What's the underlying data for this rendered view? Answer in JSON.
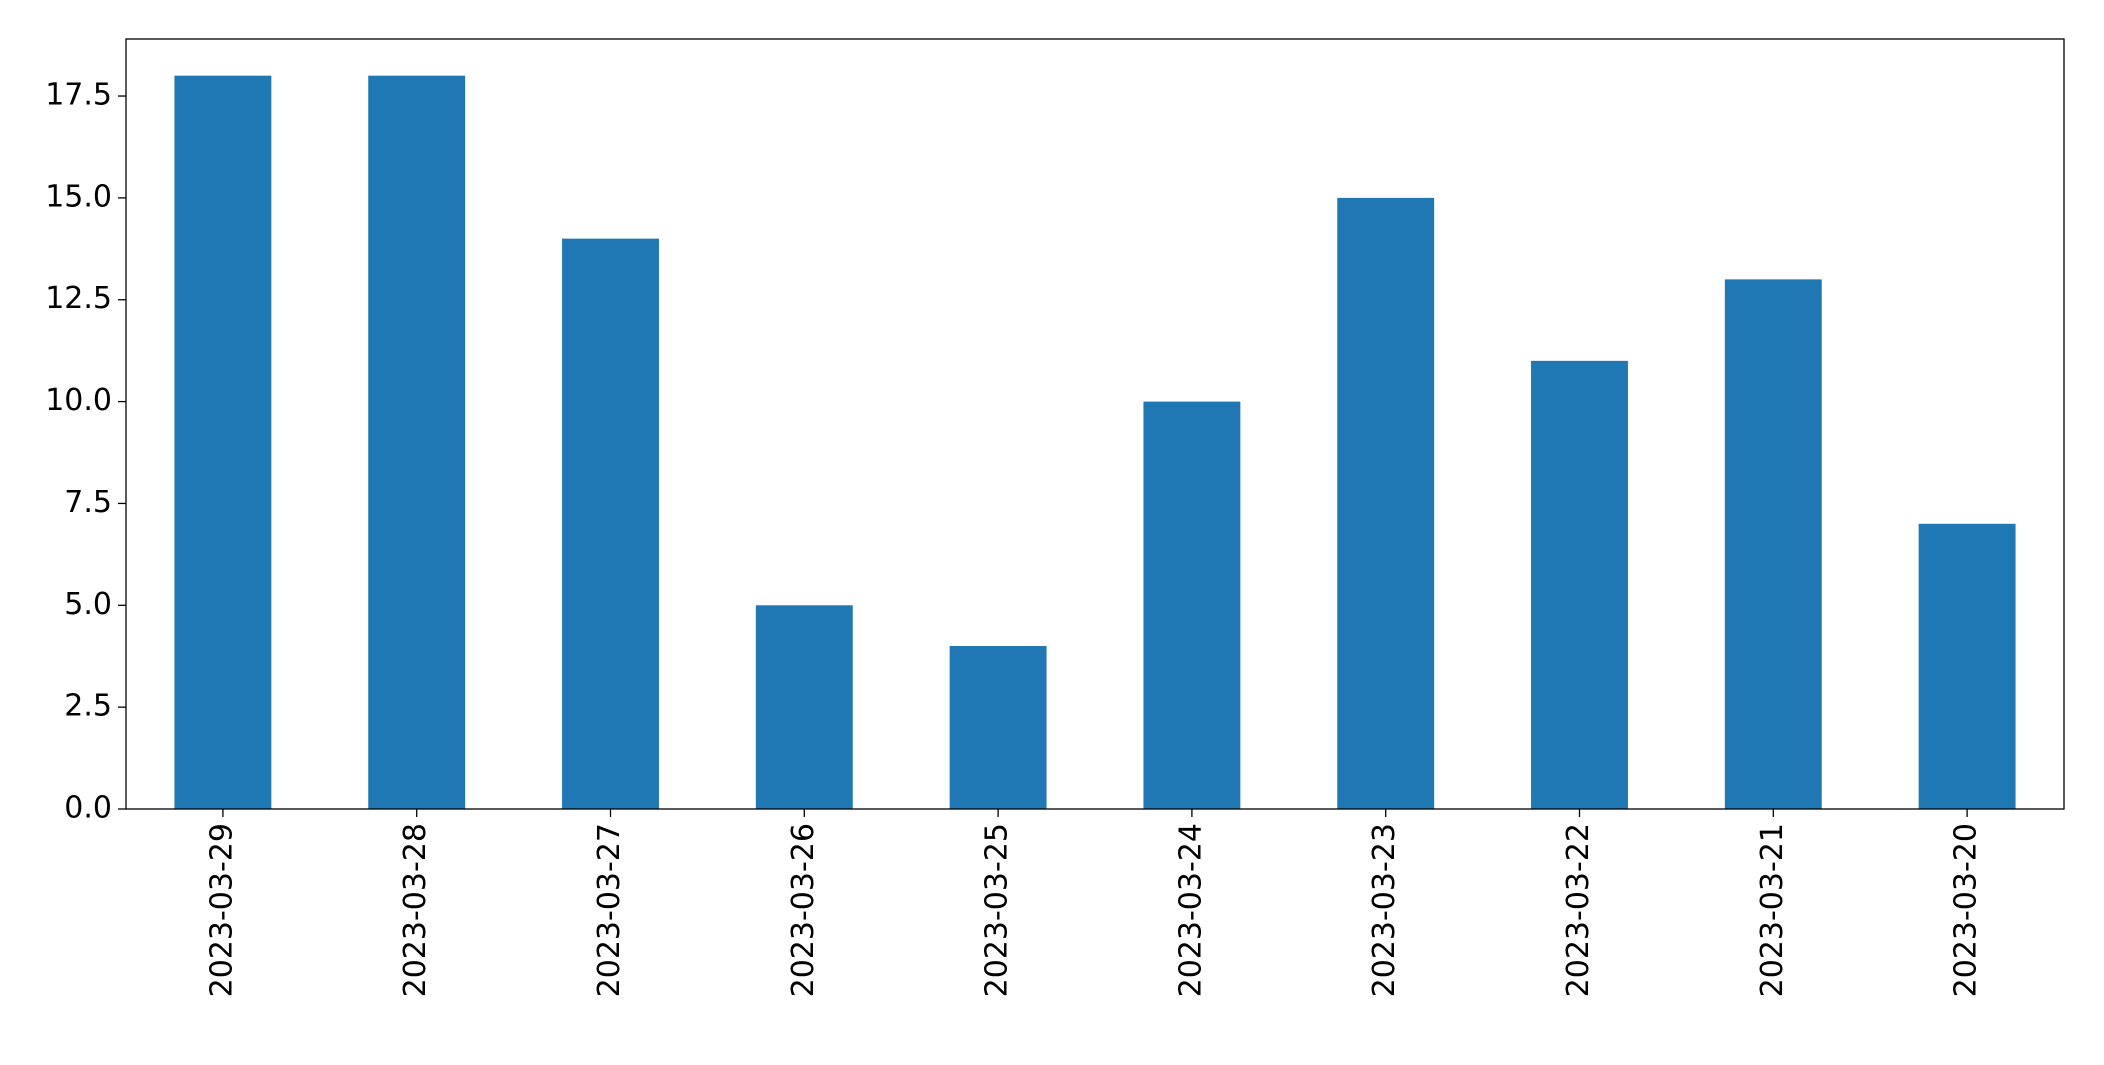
{
  "chart_data": {
    "type": "bar",
    "categories": [
      "2023-03-29",
      "2023-03-28",
      "2023-03-27",
      "2023-03-26",
      "2023-03-25",
      "2023-03-24",
      "2023-03-23",
      "2023-03-22",
      "2023-03-21",
      "2023-03-20"
    ],
    "values": [
      18,
      18,
      14,
      5,
      4,
      10,
      15,
      11,
      13,
      7
    ],
    "color": "#1f77b4",
    "ylim": [
      0,
      18.9
    ],
    "yticks": [
      {
        "value": 0,
        "label": "0.0"
      },
      2.5,
      {
        "value": 5,
        "label": "5.0"
      },
      7.5,
      {
        "value": 10,
        "label": "10.0"
      },
      12.5,
      {
        "value": 15,
        "label": "15.0"
      },
      17.5
    ],
    "grid": false
  }
}
